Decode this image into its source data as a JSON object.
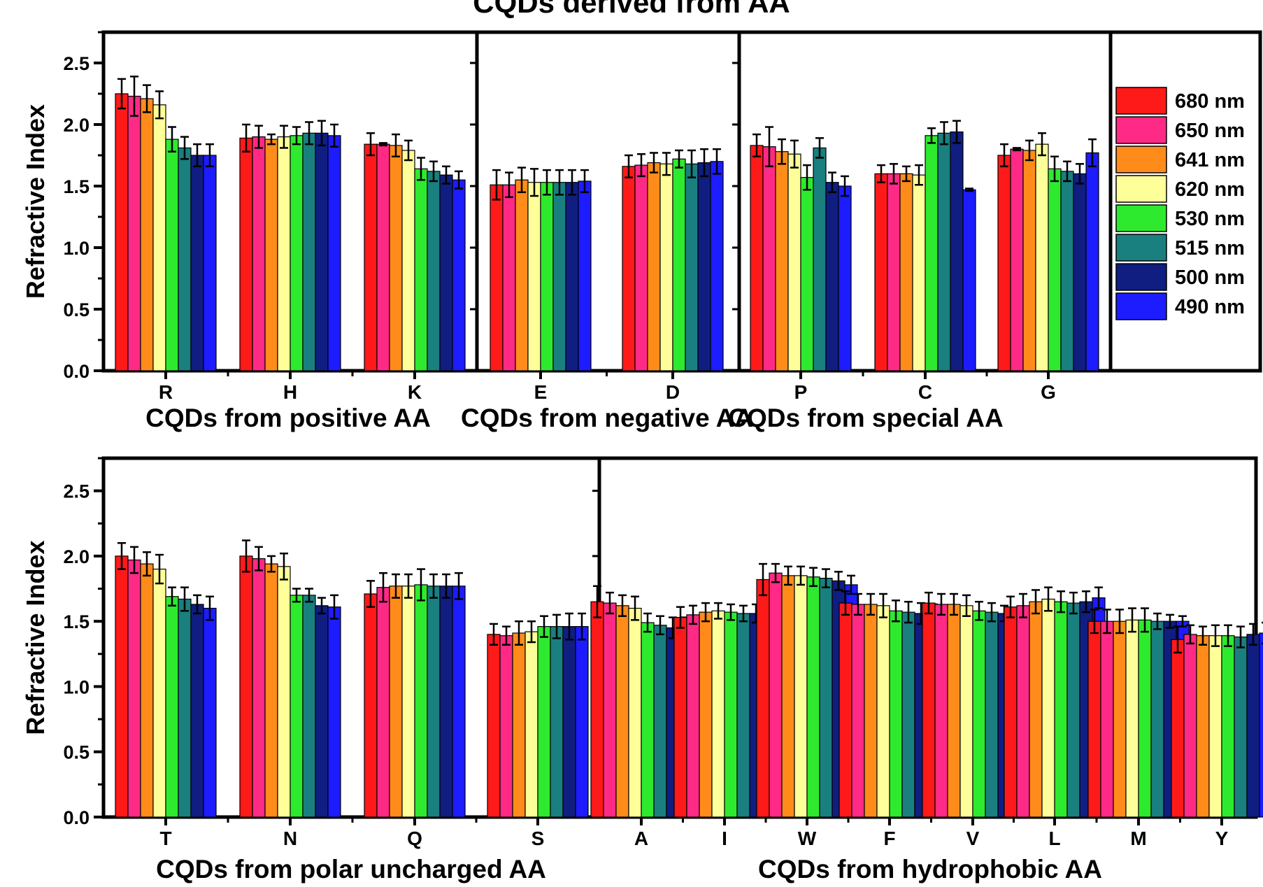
{
  "figure_title": "CQDs derived from AA",
  "colors": {
    "680 nm": "#ff1a1a",
    "650 nm": "#ff2a85",
    "641 nm": "#ff8c1a",
    "620 nm": "#ffff99",
    "530 nm": "#2eea2e",
    "515 nm": "#1a7f7f",
    "500 nm": "#0f1e80",
    "490 nm": "#1c1cff"
  },
  "chart_data": [
    {
      "type": "bar",
      "panel": "top",
      "ylabel": "Refractive Index",
      "ylim": [
        0,
        2.75
      ],
      "yticks": [
        "0.0",
        "0.5",
        "1.0",
        "1.5",
        "2.0",
        "2.5"
      ],
      "legend": {
        "placement": "right",
        "entries": [
          "680 nm",
          "650 nm",
          "641 nm",
          "620 nm",
          "530 nm",
          "515 nm",
          "500 nm",
          "490 nm"
        ]
      },
      "groups": [
        {
          "label": "CQDs from positive AA",
          "categories": [
            {
              "name": "R",
              "values": [
                2.25,
                2.23,
                2.21,
                2.16,
                1.88,
                1.81,
                1.75,
                1.75
              ],
              "errors": [
                0.12,
                0.16,
                0.11,
                0.11,
                0.1,
                0.09,
                0.09,
                0.09
              ]
            },
            {
              "name": "H",
              "values": [
                1.89,
                1.9,
                1.88,
                1.9,
                1.91,
                1.93,
                1.93,
                1.91
              ],
              "errors": [
                0.11,
                0.09,
                0.04,
                0.09,
                0.07,
                0.09,
                0.1,
                0.09
              ]
            },
            {
              "name": "K",
              "values": [
                1.84,
                1.84,
                1.83,
                1.79,
                1.64,
                1.62,
                1.59,
                1.55
              ],
              "errors": [
                0.09,
                0.01,
                0.09,
                0.08,
                0.09,
                0.08,
                0.07,
                0.07
              ]
            }
          ]
        },
        {
          "label": "CQDs from negative AA",
          "categories": [
            {
              "name": "E",
              "values": [
                1.51,
                1.51,
                1.55,
                1.53,
                1.53,
                1.53,
                1.53,
                1.54
              ],
              "errors": [
                0.12,
                0.1,
                0.1,
                0.11,
                0.1,
                0.1,
                0.1,
                0.09
              ]
            },
            {
              "name": "D",
              "values": [
                1.66,
                1.67,
                1.69,
                1.68,
                1.72,
                1.68,
                1.69,
                1.7
              ],
              "errors": [
                0.09,
                0.09,
                0.08,
                0.09,
                0.07,
                0.11,
                0.11,
                0.1
              ]
            }
          ]
        },
        {
          "label": "CQDs from special AA",
          "categories": [
            {
              "name": "P",
              "values": [
                1.83,
                1.82,
                1.78,
                1.76,
                1.57,
                1.81,
                1.53,
                1.5
              ],
              "errors": [
                0.09,
                0.16,
                0.1,
                0.11,
                0.1,
                0.08,
                0.08,
                0.08
              ]
            },
            {
              "name": "C",
              "values": [
                1.6,
                1.6,
                1.6,
                1.59,
                1.91,
                1.93,
                1.94,
                1.47
              ],
              "errors": [
                0.07,
                0.08,
                0.06,
                0.08,
                0.06,
                0.09,
                0.09,
                0.01
              ]
            },
            {
              "name": "G",
              "values": [
                1.75,
                1.8,
                1.79,
                1.84,
                1.64,
                1.62,
                1.6,
                1.77
              ],
              "errors": [
                0.09,
                0.01,
                0.08,
                0.09,
                0.1,
                0.08,
                0.08,
                0.11
              ]
            }
          ]
        }
      ]
    },
    {
      "type": "bar",
      "panel": "bottom",
      "ylabel": "Refractive Index",
      "ylim": [
        0,
        2.75
      ],
      "yticks": [
        "0.0",
        "0.5",
        "1.0",
        "1.5",
        "2.0",
        "2.5"
      ],
      "groups": [
        {
          "label": "CQDs from polar uncharged AA",
          "categories": [
            {
              "name": "T",
              "values": [
                2.0,
                1.97,
                1.94,
                1.9,
                1.69,
                1.67,
                1.63,
                1.6
              ],
              "errors": [
                0.1,
                0.1,
                0.09,
                0.11,
                0.07,
                0.09,
                0.07,
                0.09
              ]
            },
            {
              "name": "N",
              "values": [
                2.0,
                1.98,
                1.94,
                1.92,
                1.7,
                1.7,
                1.62,
                1.61
              ],
              "errors": [
                0.12,
                0.09,
                0.06,
                0.1,
                0.05,
                0.05,
                0.06,
                0.09
              ]
            },
            {
              "name": "Q",
              "values": [
                1.71,
                1.76,
                1.77,
                1.77,
                1.78,
                1.77,
                1.77,
                1.77
              ],
              "errors": [
                0.1,
                0.11,
                0.09,
                0.09,
                0.12,
                0.09,
                0.09,
                0.1
              ]
            },
            {
              "name": "S",
              "values": [
                1.4,
                1.39,
                1.41,
                1.42,
                1.46,
                1.46,
                1.46,
                1.46
              ],
              "errors": [
                0.08,
                0.07,
                0.09,
                0.08,
                0.08,
                0.09,
                0.1,
                0.1
              ]
            }
          ]
        },
        {
          "label": "CQDs from hydrophobic AA",
          "categories": [
            {
              "name": "A",
              "values": [
                1.65,
                1.64,
                1.62,
                1.6,
                1.49,
                1.47,
                1.45,
                1.44
              ],
              "errors": [
                0.12,
                0.08,
                0.08,
                0.09,
                0.07,
                0.07,
                0.08,
                0.09
              ]
            },
            {
              "name": "I",
              "values": [
                1.53,
                1.55,
                1.57,
                1.58,
                1.57,
                1.56,
                1.56,
                1.57
              ],
              "errors": [
                0.08,
                0.07,
                0.07,
                0.06,
                0.06,
                0.06,
                0.07,
                0.07
              ]
            },
            {
              "name": "W",
              "values": [
                1.82,
                1.87,
                1.85,
                1.85,
                1.84,
                1.83,
                1.81,
                1.78
              ],
              "errors": [
                0.12,
                0.07,
                0.07,
                0.07,
                0.07,
                0.07,
                0.07,
                0.07
              ]
            },
            {
              "name": "F",
              "values": [
                1.64,
                1.63,
                1.63,
                1.62,
                1.58,
                1.57,
                1.56,
                1.55
              ],
              "errors": [
                0.09,
                0.08,
                0.08,
                0.09,
                0.08,
                0.08,
                0.08,
                0.08
              ]
            },
            {
              "name": "V",
              "values": [
                1.64,
                1.63,
                1.63,
                1.62,
                1.58,
                1.57,
                1.56,
                1.55
              ],
              "errors": [
                0.08,
                0.08,
                0.08,
                0.08,
                0.07,
                0.07,
                0.06,
                0.05
              ]
            },
            {
              "name": "L",
              "values": [
                1.61,
                1.62,
                1.65,
                1.67,
                1.65,
                1.64,
                1.65,
                1.68
              ],
              "errors": [
                0.08,
                0.09,
                0.09,
                0.09,
                0.08,
                0.08,
                0.08,
                0.08
              ]
            },
            {
              "name": "M",
              "values": [
                1.5,
                1.5,
                1.5,
                1.51,
                1.51,
                1.5,
                1.5,
                1.5
              ],
              "errors": [
                0.09,
                0.09,
                0.09,
                0.09,
                0.09,
                0.06,
                0.05,
                0.04
              ]
            },
            {
              "name": "Y",
              "values": [
                1.36,
                1.4,
                1.39,
                1.39,
                1.39,
                1.38,
                1.4,
                1.41
              ],
              "errors": [
                0.1,
                0.07,
                0.07,
                0.08,
                0.08,
                0.08,
                0.08,
                0.08
              ]
            }
          ]
        }
      ]
    }
  ]
}
